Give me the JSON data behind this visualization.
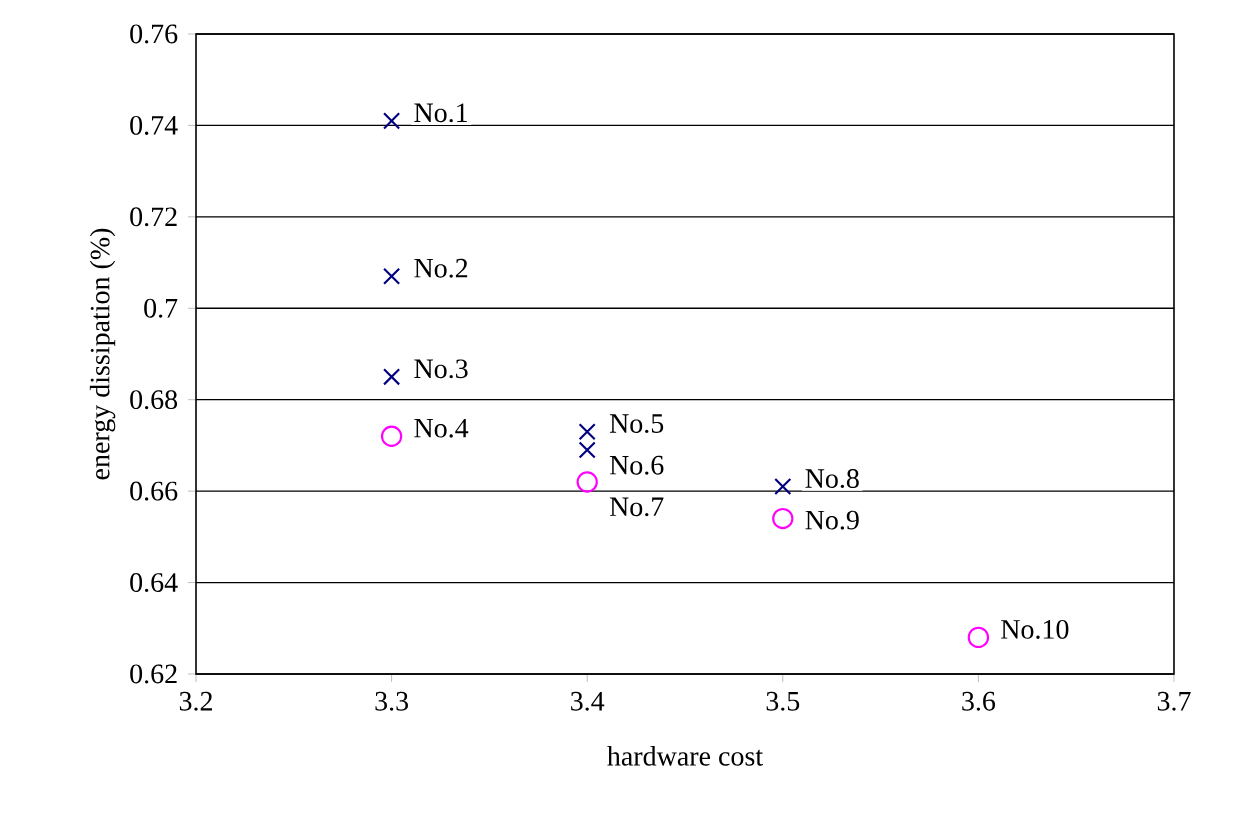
{
  "chart_data": {
    "type": "scatter",
    "xlabel": "hardware cost",
    "ylabel": "energy dissipation (%)",
    "xlim": [
      3.2,
      3.7
    ],
    "xticks": [
      3.2,
      3.3,
      3.4,
      3.5,
      3.6,
      3.7
    ],
    "ylim": [
      0.62,
      0.76
    ],
    "yticks": [
      0.62,
      0.64,
      0.66,
      0.68,
      0.7,
      0.72,
      0.74,
      0.76
    ],
    "grid": "y",
    "series": [
      {
        "color": "#000080",
        "marker": "cross",
        "x": [
          3.3,
          3.3,
          3.3,
          3.4,
          3.4,
          3.5
        ],
        "values": [
          0.741,
          0.707,
          0.685,
          0.673,
          0.669,
          0.661
        ]
      },
      {
        "color": "#ff00ff",
        "marker": "circle",
        "x": [
          3.3,
          3.4,
          3.5,
          3.6
        ],
        "values": [
          0.672,
          0.662,
          0.654,
          0.628
        ]
      }
    ],
    "annotations": [
      {
        "text": "No.1",
        "x": 3.3,
        "y": 0.741
      },
      {
        "text": "No.2",
        "x": 3.3,
        "y": 0.707
      },
      {
        "text": "No.3",
        "x": 3.3,
        "y": 0.685
      },
      {
        "text": "No.4",
        "x": 3.3,
        "y": 0.672
      },
      {
        "text": "No.5",
        "x": 3.4,
        "y": 0.673
      },
      {
        "text": "No.6",
        "x": 3.4,
        "y": 0.669
      },
      {
        "text": "No.7",
        "x": 3.4,
        "y": 0.662
      },
      {
        "text": "No.8",
        "x": 3.5,
        "y": 0.661
      },
      {
        "text": "No.9",
        "x": 3.5,
        "y": 0.654
      },
      {
        "text": "No.10",
        "x": 3.6,
        "y": 0.628
      }
    ]
  }
}
